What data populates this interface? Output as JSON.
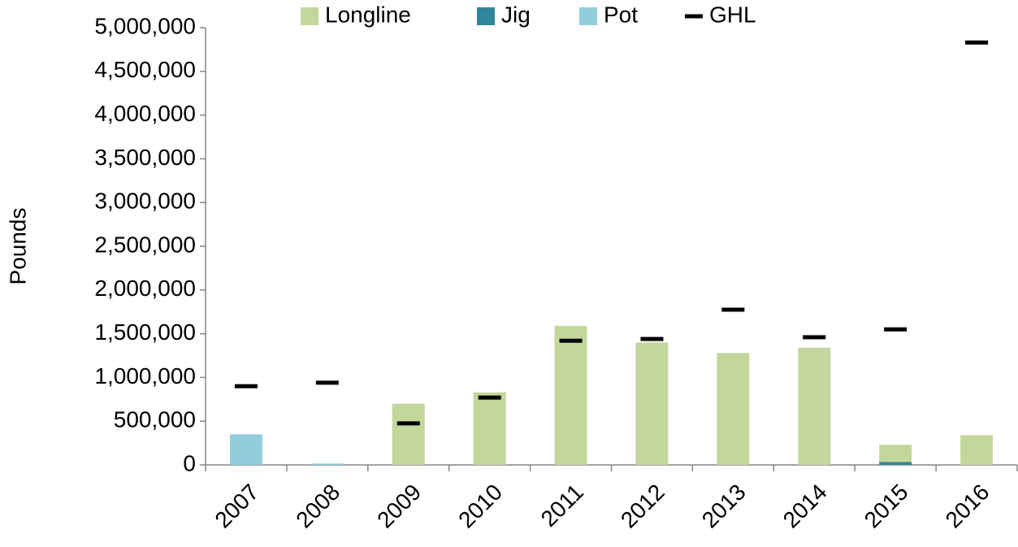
{
  "chart_data": {
    "type": "stacked_bar",
    "y_label": "Pounds",
    "categories": [
      "2007",
      "2008",
      "2009",
      "2010",
      "2011",
      "2012",
      "2013",
      "2014",
      "2015",
      "2016"
    ],
    "series": [
      {
        "name": "Longline",
        "color": "#c4d79b",
        "values": [
          0,
          0,
          700000,
          830000,
          1590000,
          1400000,
          1280000,
          1340000,
          195000,
          340000
        ]
      },
      {
        "name": "Jig",
        "color": "#31859c",
        "values": [
          0,
          0,
          0,
          0,
          0,
          0,
          0,
          0,
          35000,
          0
        ]
      },
      {
        "name": "Pot",
        "color": "#92cddc",
        "values": [
          350000,
          15000,
          0,
          0,
          0,
          0,
          0,
          0,
          0,
          0
        ]
      },
      {
        "name": "GHL",
        "color": "#000000",
        "marker": "dash",
        "values": [
          900000,
          940000,
          475000,
          770000,
          1420000,
          1440000,
          1775000,
          1460000,
          1550000,
          4830000
        ]
      }
    ],
    "ylim": [
      0,
      5000000
    ],
    "yticks": [
      0,
      {
        "value": 500000,
        "label": "500,000"
      },
      {
        "value": 1000000,
        "label": "1,000,000"
      },
      {
        "value": 1500000,
        "label": "1,500,000"
      },
      {
        "value": 2000000,
        "label": "2,000,000"
      },
      {
        "value": 2500000,
        "label": "2,500,000"
      },
      {
        "value": 3000000,
        "label": "3,000,000"
      },
      {
        "value": 3500000,
        "label": "3,500,000"
      },
      {
        "value": 4000000,
        "label": "4,000,000"
      },
      {
        "value": 4500000,
        "label": "4,500,000"
      },
      {
        "value": 5000000,
        "label": "5,000,000"
      }
    ],
    "legend": "top",
    "grid": false
  }
}
